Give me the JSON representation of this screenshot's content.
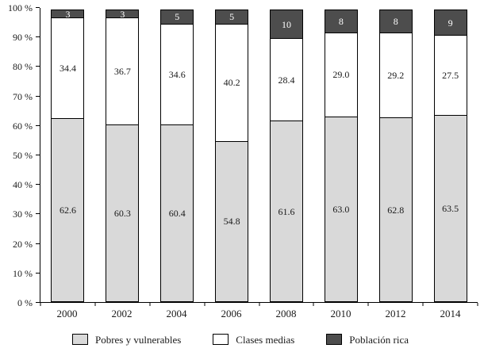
{
  "chart_data": {
    "type": "bar",
    "stacked": true,
    "title": "",
    "xlabel": "",
    "ylabel": "",
    "ylim": [
      0,
      100
    ],
    "grid": false,
    "legend_position": "bottom",
    "categories": [
      "2000",
      "2002",
      "2004",
      "2006",
      "2008",
      "2010",
      "2012",
      "2014"
    ],
    "y_ticks": [
      "0 %",
      "10 %",
      "20 %",
      "30 %",
      "40 %",
      "50 %",
      "60 %",
      "70 %",
      "80 %",
      "90 %",
      "100 %"
    ],
    "series": [
      {
        "name": "Pobres y vulnerables",
        "color": "#d9d9d9",
        "text_color": "#1a1a1a",
        "values": [
          62.6,
          60.3,
          60.4,
          54.8,
          61.6,
          63.0,
          62.8,
          63.5
        ],
        "labels": [
          "62.6",
          "60.3",
          "60.4",
          "54.8",
          "61.6",
          "63.0",
          "62.8",
          "63.5"
        ]
      },
      {
        "name": "Clases medias",
        "color": "#ffffff",
        "text_color": "#1a1a1a",
        "values": [
          34.4,
          36.7,
          34.6,
          40.2,
          28.4,
          29.0,
          29.2,
          27.5
        ],
        "labels": [
          "34.4",
          "36.7",
          "34.6",
          "40.2",
          "28.4",
          "29.0",
          "29.2",
          "27.5"
        ]
      },
      {
        "name": "Población rica",
        "color": "#4d4d4d",
        "text_color": "#ffffff",
        "values": [
          3,
          3,
          5,
          5,
          10,
          8,
          8,
          9
        ],
        "labels": [
          "3",
          "3",
          "5",
          "5",
          "10",
          "8",
          "8",
          "9"
        ]
      }
    ]
  }
}
